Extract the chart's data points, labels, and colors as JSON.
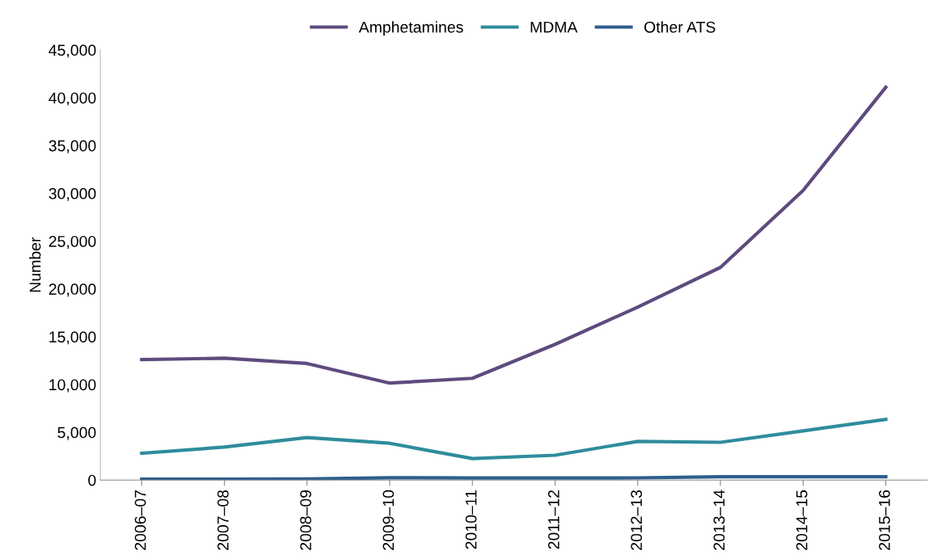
{
  "chart_data": {
    "type": "line",
    "ylabel": "Number",
    "categories": [
      "2006–07",
      "2007–08",
      "2008–09",
      "2009–10",
      "2010–11",
      "2011–12",
      "2012–13",
      "2013–14",
      "2014–15",
      "2015–16"
    ],
    "series": [
      {
        "name": "Amphetamines",
        "color": "#5e4b7e",
        "values": [
          12600,
          12750,
          12200,
          10150,
          10650,
          14200,
          18100,
          22250,
          30300,
          41100
        ]
      },
      {
        "name": "MDMA",
        "color": "#2f8c9c",
        "values": [
          2800,
          3450,
          4450,
          3850,
          2250,
          2600,
          4050,
          3950,
          5150,
          6350
        ]
      },
      {
        "name": "Other ATS",
        "color": "#2d5e8e",
        "values": [
          100,
          100,
          120,
          250,
          220,
          220,
          230,
          350,
          350,
          350
        ]
      }
    ],
    "ylim": [
      0,
      45000
    ],
    "yticks": [
      {
        "value": 0,
        "label": "0"
      },
      {
        "value": 5000,
        "label": "5,000"
      },
      {
        "value": 10000,
        "label": "10,000"
      },
      {
        "value": 15000,
        "label": "15,000"
      },
      {
        "value": 20000,
        "label": "20,000"
      },
      {
        "value": 25000,
        "label": "25,000"
      },
      {
        "value": 30000,
        "label": "30,000"
      },
      {
        "value": 35000,
        "label": "35,000"
      },
      {
        "value": 40000,
        "label": "40,000"
      },
      {
        "value": 45000,
        "label": "45,000"
      }
    ],
    "grid": false,
    "legend": "top",
    "marker": "none",
    "line_style": "solid"
  }
}
